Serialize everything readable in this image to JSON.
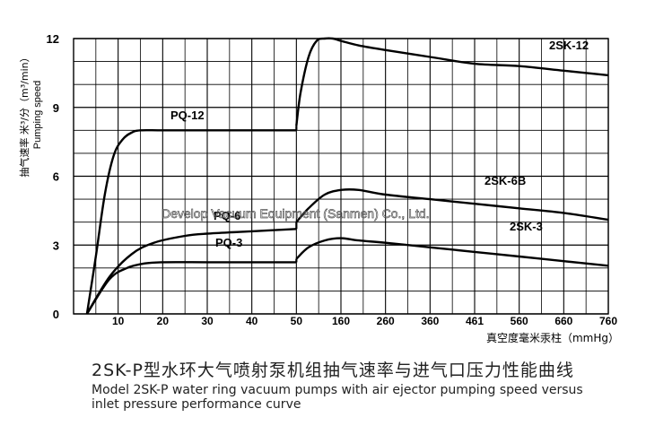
{
  "chart_data": {
    "type": "line",
    "ylabel_zh": "抽气速率 米³/分（m³/min）",
    "ylabel_en": "Pumping speed",
    "xlabel": "真空度毫米汞柱（mmHg）",
    "x_ticks": [
      "10",
      "20",
      "30",
      "40",
      "50",
      "160",
      "260",
      "360",
      "461",
      "560",
      "660",
      "760"
    ],
    "y_ticks": [
      "0",
      "3",
      "6",
      "9",
      "12"
    ],
    "ylim": [
      0,
      12
    ],
    "grid": true,
    "watermark": "Develop Vacuum Equipment (Sanmen) Co., Ltd.",
    "series": [
      {
        "name": "2SK-12",
        "x": [
          50,
          60,
          80,
          100,
          120,
          140,
          160,
          200,
          260,
          360,
          461,
          560,
          660,
          760
        ],
        "y": [
          8.2,
          9.6,
          11.2,
          11.9,
          12.0,
          12.0,
          11.9,
          11.7,
          11.5,
          11.2,
          10.9,
          10.8,
          10.6,
          10.4
        ]
      },
      {
        "name": "PQ-12",
        "x": [
          3,
          5,
          7,
          9,
          11,
          13,
          15,
          20,
          30,
          40,
          50
        ],
        "y": [
          0,
          2.5,
          5.2,
          6.9,
          7.6,
          7.9,
          8.0,
          8.0,
          8.0,
          8.0,
          8.0
        ]
      },
      {
        "name": "2SK-6B",
        "x": [
          50,
          80,
          120,
          160,
          200,
          260,
          360,
          461,
          560,
          660,
          760
        ],
        "y": [
          4.0,
          4.6,
          5.2,
          5.4,
          5.4,
          5.2,
          5.0,
          4.8,
          4.6,
          4.4,
          4.1
        ]
      },
      {
        "name": "PQ-6",
        "x": [
          3,
          8,
          13,
          18,
          25,
          30,
          40,
          50
        ],
        "y": [
          0,
          1.6,
          2.6,
          3.1,
          3.4,
          3.5,
          3.6,
          3.7
        ]
      },
      {
        "name": "2SK-3",
        "x": [
          50,
          80,
          120,
          160,
          200,
          260,
          360,
          461,
          560,
          660,
          760
        ],
        "y": [
          2.4,
          2.9,
          3.2,
          3.3,
          3.2,
          3.1,
          2.9,
          2.7,
          2.5,
          2.3,
          2.1
        ]
      },
      {
        "name": "PQ-3",
        "x": [
          3,
          8,
          12,
          16,
          20,
          30,
          40,
          50
        ],
        "y": [
          0,
          1.5,
          2.0,
          2.2,
          2.25,
          2.25,
          2.25,
          2.25
        ]
      }
    ]
  },
  "caption": {
    "title_zh": "2SK-P型水环大气喷射泵机组抽气速率与进气口压力性能曲线",
    "title_en_line1": "Model 2SK-P water ring vacuum pumps with air ejector pumping speed versus",
    "title_en_line2": "inlet pressure performance curve"
  }
}
